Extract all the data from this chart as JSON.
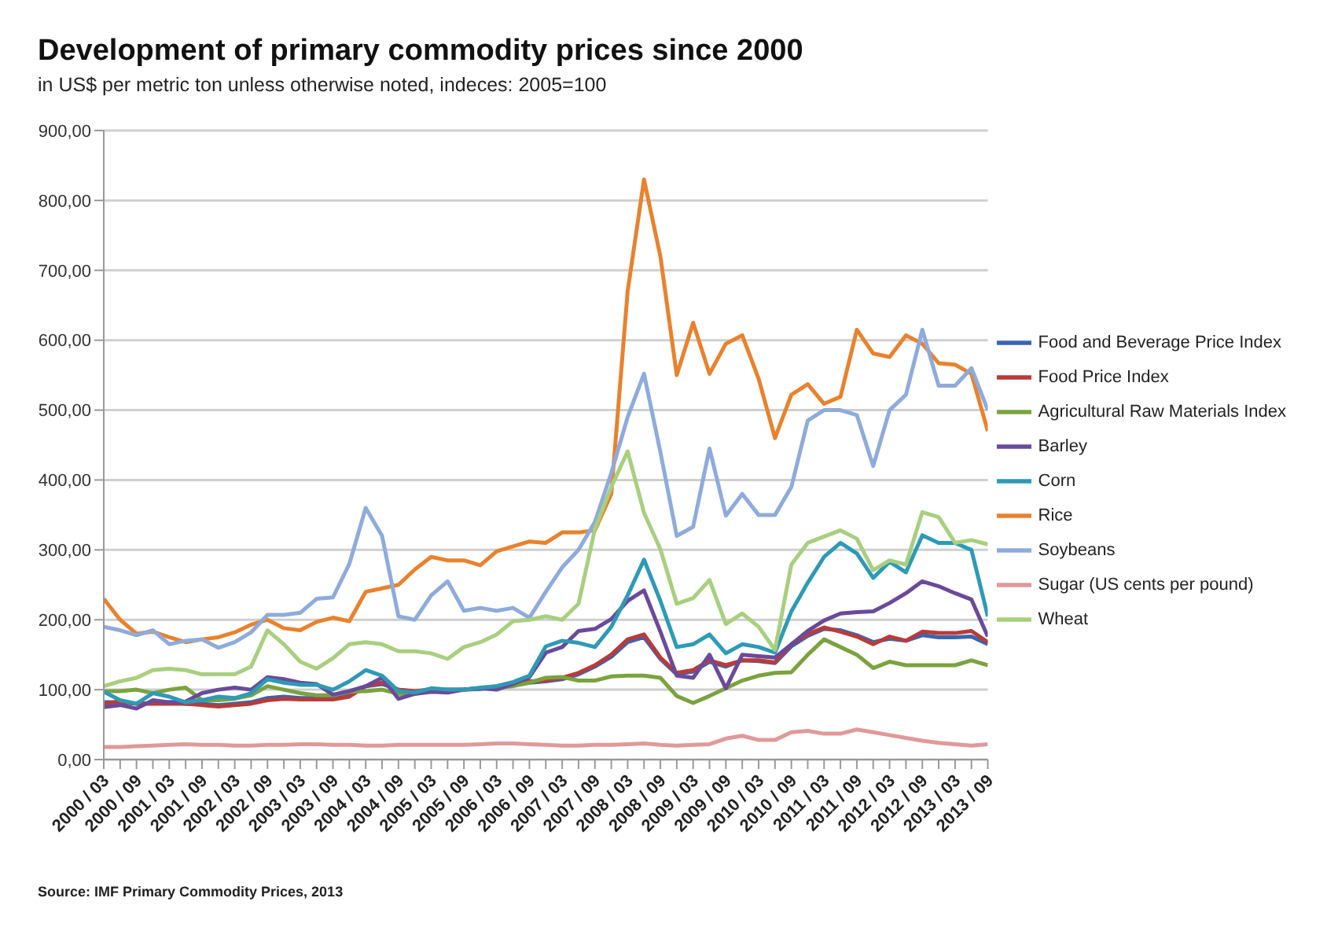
{
  "chart_data": {
    "type": "line",
    "title": "Development of primary commodity prices since 2000",
    "subtitle": "in US$ per metric ton unless otherwise noted, indeces: 2005=100",
    "annotations": [
      "Source: IMF Primary Commodity Prices, 2013"
    ],
    "categories": [
      "2000 / 03",
      null,
      "2000 / 09",
      null,
      "2001 / 03",
      null,
      "2001 / 09",
      null,
      "2002 / 03",
      null,
      "2002 / 09",
      null,
      "2003 / 03",
      null,
      "2003 / 09",
      null,
      "2004 / 03",
      null,
      "2004 / 09",
      null,
      "2005 / 03",
      null,
      "2005 / 09",
      null,
      "2006 / 03",
      null,
      "2006 / 09",
      null,
      "2007 / 03",
      null,
      "2007 / 09",
      null,
      "2008 / 03",
      null,
      "2008 / 09",
      null,
      "2009 / 03",
      null,
      "2009 / 09",
      null,
      "2010 / 03",
      null,
      "2010 / 09",
      null,
      "2011 / 03",
      null,
      "2011 / 09",
      null,
      "2012 / 03",
      null,
      "2012 / 09",
      null,
      "2013 / 03",
      null,
      "2013 / 09"
    ],
    "series": [
      {
        "name": "Food and Beverage Price Index",
        "color": "#3a65b0",
        "values": [
          82,
          82,
          80,
          81,
          82,
          80,
          80,
          78,
          80,
          82,
          88,
          90,
          88,
          88,
          88,
          92,
          105,
          108,
          100,
          97,
          99,
          99,
          100,
          101,
          104,
          108,
          110,
          112,
          115,
          122,
          133,
          147,
          168,
          175,
          144,
          122,
          126,
          140,
          133,
          142,
          141,
          138,
          162,
          177,
          187,
          185,
          178,
          168,
          173,
          170,
          178,
          175,
          175,
          176,
          165
        ]
      },
      {
        "name": "Food Price Index",
        "color": "#b73c3a",
        "values": [
          80,
          83,
          80,
          80,
          80,
          80,
          78,
          76,
          78,
          80,
          85,
          87,
          86,
          86,
          86,
          90,
          105,
          110,
          100,
          98,
          100,
          100,
          100,
          102,
          105,
          110,
          112,
          113,
          117,
          124,
          135,
          150,
          172,
          179,
          146,
          124,
          128,
          142,
          135,
          142,
          142,
          139,
          165,
          179,
          189,
          183,
          176,
          165,
          176,
          170,
          183,
          181,
          181,
          184,
          168
        ]
      },
      {
        "name": "Agricultural Raw Materials Index",
        "color": "#7aa33e",
        "values": [
          98,
          98,
          100,
          95,
          100,
          103,
          85,
          85,
          87,
          92,
          105,
          100,
          95,
          92,
          92,
          97,
          98,
          100,
          94,
          95,
          97,
          98,
          100,
          102,
          103,
          105,
          110,
          117,
          118,
          113,
          113,
          119,
          120,
          120,
          117,
          91,
          81,
          91,
          102,
          113,
          120,
          124,
          125,
          150,
          172,
          161,
          150,
          131,
          140,
          135,
          135,
          135,
          135,
          142,
          135
        ]
      },
      {
        "name": "Barley",
        "color": "#6a4a9a",
        "values": [
          75,
          78,
          73,
          85,
          82,
          83,
          95,
          100,
          103,
          100,
          118,
          115,
          110,
          108,
          93,
          98,
          105,
          117,
          87,
          94,
          97,
          96,
          100,
          102,
          100,
          108,
          118,
          153,
          161,
          184,
          187,
          201,
          227,
          242,
          183,
          120,
          117,
          150,
          102,
          150,
          148,
          146,
          165,
          184,
          199,
          209,
          211,
          212,
          224,
          238,
          255,
          248,
          238,
          229,
          176
        ]
      },
      {
        "name": "Corn",
        "color": "#2e9ab5",
        "values": [
          97,
          85,
          80,
          95,
          90,
          82,
          85,
          90,
          88,
          95,
          115,
          110,
          107,
          107,
          100,
          112,
          128,
          120,
          98,
          96,
          102,
          100,
          100,
          103,
          105,
          111,
          120,
          162,
          170,
          167,
          161,
          190,
          235,
          286,
          227,
          161,
          165,
          179,
          152,
          165,
          161,
          153,
          212,
          253,
          290,
          310,
          295,
          260,
          283,
          268,
          321,
          310,
          310,
          300,
          205
        ]
      },
      {
        "name": "Rice",
        "color": "#e8822e",
        "values": [
          230,
          200,
          180,
          183,
          175,
          168,
          172,
          175,
          182,
          193,
          200,
          188,
          185,
          197,
          203,
          198,
          240,
          245,
          250,
          272,
          290,
          285,
          285,
          278,
          298,
          305,
          312,
          310,
          325,
          325,
          328,
          380,
          670,
          830,
          720,
          550,
          625,
          552,
          595,
          607,
          545,
          460,
          522,
          537,
          509,
          519,
          615,
          581,
          576,
          607,
          595,
          567,
          565,
          552,
          470
        ]
      },
      {
        "name": "Soybeans",
        "color": "#8eabdb",
        "values": [
          190,
          185,
          178,
          185,
          165,
          170,
          172,
          160,
          168,
          182,
          207,
          207,
          210,
          230,
          232,
          280,
          360,
          320,
          205,
          200,
          235,
          255,
          213,
          217,
          213,
          217,
          203,
          240,
          275,
          300,
          340,
          410,
          490,
          552,
          440,
          320,
          333,
          445,
          349,
          380,
          350,
          350,
          390,
          485,
          500,
          500,
          493,
          420,
          500,
          522,
          615,
          535,
          535,
          560,
          500
        ]
      },
      {
        "name": "Sugar (US cents per pound)",
        "color": "#e0999a",
        "values": [
          18,
          18,
          19,
          20,
          21,
          22,
          21,
          21,
          20,
          20,
          21,
          21,
          22,
          22,
          21,
          21,
          20,
          20,
          21,
          21,
          21,
          21,
          21,
          22,
          23,
          23,
          22,
          21,
          20,
          20,
          21,
          21,
          22,
          23,
          21,
          20,
          21,
          22,
          30,
          34,
          28,
          28,
          39,
          41,
          37,
          37,
          43,
          39,
          35,
          31,
          27,
          24,
          22,
          20,
          22
        ]
      },
      {
        "name": "Wheat",
        "color": "#a8cf7f",
        "values": [
          105,
          112,
          117,
          128,
          130,
          128,
          122,
          122,
          122,
          133,
          185,
          165,
          140,
          130,
          145,
          165,
          168,
          165,
          155,
          155,
          152,
          144,
          161,
          168,
          179,
          198,
          200,
          205,
          200,
          223,
          330,
          390,
          441,
          353,
          301,
          223,
          231,
          257,
          194,
          209,
          190,
          157,
          279,
          310,
          319,
          328,
          316,
          271,
          285,
          279,
          354,
          347,
          310,
          314,
          308
        ]
      }
    ],
    "ylim": [
      0,
      900
    ],
    "yticks": [
      {
        "value": 0,
        "label": "0,00"
      },
      {
        "value": 100,
        "label": "100,00"
      },
      {
        "value": 200,
        "label": "200,00"
      },
      {
        "value": 300,
        "label": "300,00"
      },
      {
        "value": 400,
        "label": "400,00"
      },
      {
        "value": 500,
        "label": "500,00"
      },
      {
        "value": 600,
        "label": "600,00"
      },
      {
        "value": 700,
        "label": "700,00"
      },
      {
        "value": 800,
        "label": "800,00"
      },
      {
        "value": 900,
        "label": "900,00"
      }
    ],
    "grid": "y",
    "legend": "right",
    "marker": "none",
    "line_style": "solid"
  }
}
